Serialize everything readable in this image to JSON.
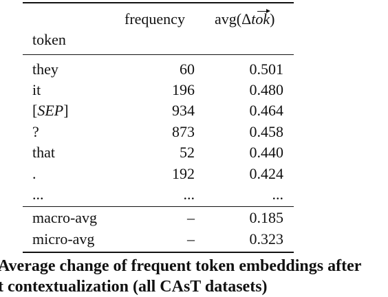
{
  "table": {
    "headers": {
      "token": "token",
      "frequency": "frequency",
      "avg_prefix": "avg(Δ",
      "avg_tok": "tok",
      "avg_suffix": ")"
    },
    "rows": [
      {
        "token_pre": "",
        "token_ital": "",
        "token_post": "they",
        "frequency": "60",
        "avg": "0.501"
      },
      {
        "token_pre": "",
        "token_ital": "",
        "token_post": "it",
        "frequency": "196",
        "avg": "0.480"
      },
      {
        "token_pre": "[",
        "token_ital": "SEP",
        "token_post": "]",
        "frequency": "934",
        "avg": "0.464"
      },
      {
        "token_pre": "",
        "token_ital": "",
        "token_post": "?",
        "frequency": "873",
        "avg": "0.458"
      },
      {
        "token_pre": "",
        "token_ital": "",
        "token_post": "that",
        "frequency": "52",
        "avg": "0.440"
      },
      {
        "token_pre": "",
        "token_ital": "",
        "token_post": ".",
        "frequency": "192",
        "avg": "0.424"
      },
      {
        "token_pre": "",
        "token_ital": "",
        "token_post": "...",
        "frequency": "...",
        "avg": "..."
      }
    ],
    "summary": [
      {
        "token": "macro-avg",
        "frequency": "–",
        "avg": "0.185"
      },
      {
        "token": "micro-avg",
        "frequency": "–",
        "avg": "0.323"
      }
    ]
  },
  "caption": {
    "line1": "Average change of frequent token embeddings after",
    "line2": "t contextualization (all CAsT datasets)"
  }
}
